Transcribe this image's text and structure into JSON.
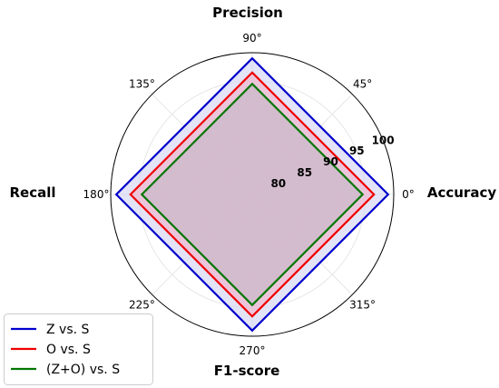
{
  "chart_data": {
    "type": "radar",
    "axes": [
      "Accuracy",
      "Precision",
      "Recall",
      "F1-score"
    ],
    "angle_labels": [
      "0°",
      "45°",
      "90°",
      "135°",
      "180°",
      "225°",
      "270°",
      "315°"
    ],
    "radial_ticks": [
      "80",
      "85",
      "90",
      "95",
      "100"
    ],
    "rlim": [
      75,
      100
    ],
    "grid": true,
    "legend_position": "lower-left",
    "series": [
      {
        "name": "Z vs. S",
        "values": [
          99,
          99,
          99,
          99
        ],
        "color": "#0000cc",
        "fill": "#d8d8f5"
      },
      {
        "name": "O vs. S",
        "values": [
          96.5,
          96.5,
          96.5,
          96.5
        ],
        "color": "#ee0000",
        "fill": "#efb8cf"
      },
      {
        "name": "(Z+O) vs. S",
        "values": [
          94.5,
          94.5,
          94.5,
          94.5
        ],
        "color": "#007700",
        "fill": "#c9b8c8"
      }
    ]
  }
}
